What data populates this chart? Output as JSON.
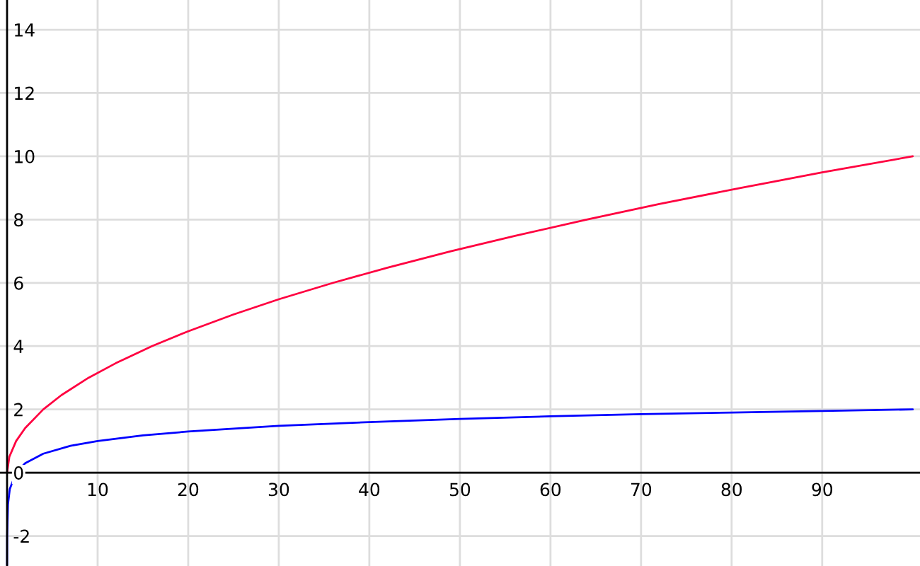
{
  "chart_data": {
    "type": "line",
    "xlim": [
      -0.78,
      100.8
    ],
    "ylim": [
      -2.95,
      14.94
    ],
    "xticks": [
      10,
      20,
      30,
      40,
      50,
      60,
      70,
      80,
      90
    ],
    "yticks": [
      -2,
      0,
      2,
      4,
      6,
      8,
      10,
      12,
      14
    ],
    "grid": true,
    "marker": "none",
    "line_style": "solid",
    "series": [
      {
        "color": "#ff0040",
        "x": [
          0,
          0.25,
          1,
          2,
          4,
          6,
          9,
          12,
          16,
          20,
          25,
          30,
          36,
          42,
          49,
          56,
          64,
          72,
          81,
          90,
          100
        ],
        "values": [
          0,
          0.5,
          1,
          1.41,
          2,
          2.45,
          3,
          3.46,
          4,
          4.47,
          5,
          5.48,
          6,
          6.48,
          7,
          7.48,
          8,
          8.49,
          9,
          9.49,
          10
        ]
      },
      {
        "color": "#0000ff",
        "x": [
          0.0012,
          0.01,
          0.1,
          0.3,
          1,
          2,
          4,
          7,
          10,
          15,
          20,
          30,
          40,
          50,
          60,
          70,
          80,
          90,
          100
        ],
        "values": [
          -2.92,
          -2,
          -1,
          -0.52,
          0,
          0.3,
          0.6,
          0.85,
          1,
          1.18,
          1.3,
          1.48,
          1.6,
          1.7,
          1.78,
          1.85,
          1.9,
          1.95,
          2
        ]
      }
    ]
  }
}
